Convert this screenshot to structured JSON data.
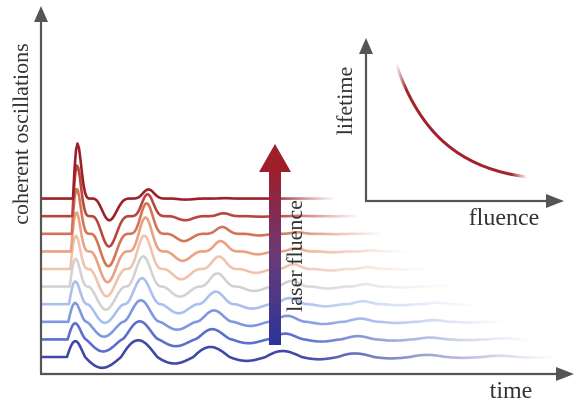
{
  "chart_data": [
    {
      "type": "line",
      "xlabel": "time",
      "ylabel": "coherent oscillations",
      "annotation": "laser fluence",
      "series_colors": [
        "#3f48a8",
        "#5b6fcc",
        "#7d98e0",
        "#a9c0ef",
        "#d2d2d2",
        "#efc3ad",
        "#e9a180",
        "#d47457",
        "#b8463d",
        "#9c1f2a"
      ]
    },
    {
      "type": "line",
      "xlabel": "fluence",
      "ylabel": "lifetime",
      "line_color": "#a3232b"
    }
  ]
}
